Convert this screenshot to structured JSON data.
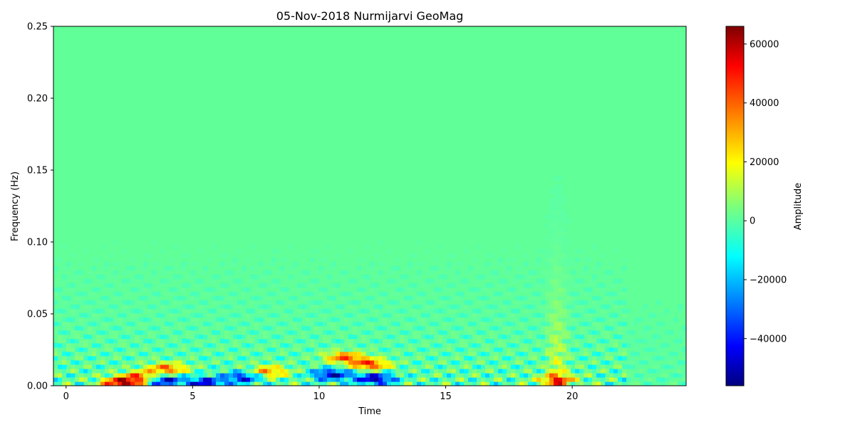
{
  "chart_data": {
    "type": "heatmap",
    "title": "05-Nov-2018 Nurmijarvi GeoMag",
    "xlabel": "Time",
    "ylabel": "Frequency (Hz)",
    "xlim": [
      -0.5,
      24.5
    ],
    "ylim": [
      0.0,
      0.25
    ],
    "xticks": [
      0,
      5,
      10,
      15,
      20
    ],
    "xtick_labels": [
      "0",
      "5",
      "10",
      "15",
      "20"
    ],
    "yticks": [
      0.0,
      0.05,
      0.1,
      0.15,
      0.2,
      0.25
    ],
    "ytick_labels": [
      "0.00",
      "0.05",
      "0.10",
      "0.15",
      "0.20",
      "0.25"
    ],
    "colormap": "jet",
    "colorbar": {
      "label": "Amplitude",
      "range": [
        -56000,
        66000
      ],
      "ticks": [
        -40000,
        -20000,
        0,
        20000,
        40000,
        60000
      ],
      "tick_labels": [
        "−40000",
        "−20000",
        "0",
        "20000",
        "40000",
        "60000"
      ]
    },
    "grid": false,
    "background_value": 0,
    "features": [
      {
        "t": 2.2,
        "f": 0.002,
        "value": 60000
      },
      {
        "t": 3.0,
        "f": 0.006,
        "value": 45000
      },
      {
        "t": 3.8,
        "f": 0.004,
        "value": -50000
      },
      {
        "t": 4.0,
        "f": 0.012,
        "value": 40000
      },
      {
        "t": 5.5,
        "f": 0.002,
        "value": -45000
      },
      {
        "t": 7.0,
        "f": 0.006,
        "value": -40000
      },
      {
        "t": 8.0,
        "f": 0.01,
        "value": 35000
      },
      {
        "t": 10.5,
        "f": 0.008,
        "value": -45000
      },
      {
        "t": 11.0,
        "f": 0.02,
        "value": 40000
      },
      {
        "t": 12.2,
        "f": 0.005,
        "value": -50000
      },
      {
        "t": 12.0,
        "f": 0.015,
        "value": 45000
      },
      {
        "t": 19.4,
        "f": 0.004,
        "value": 35000
      }
    ]
  }
}
